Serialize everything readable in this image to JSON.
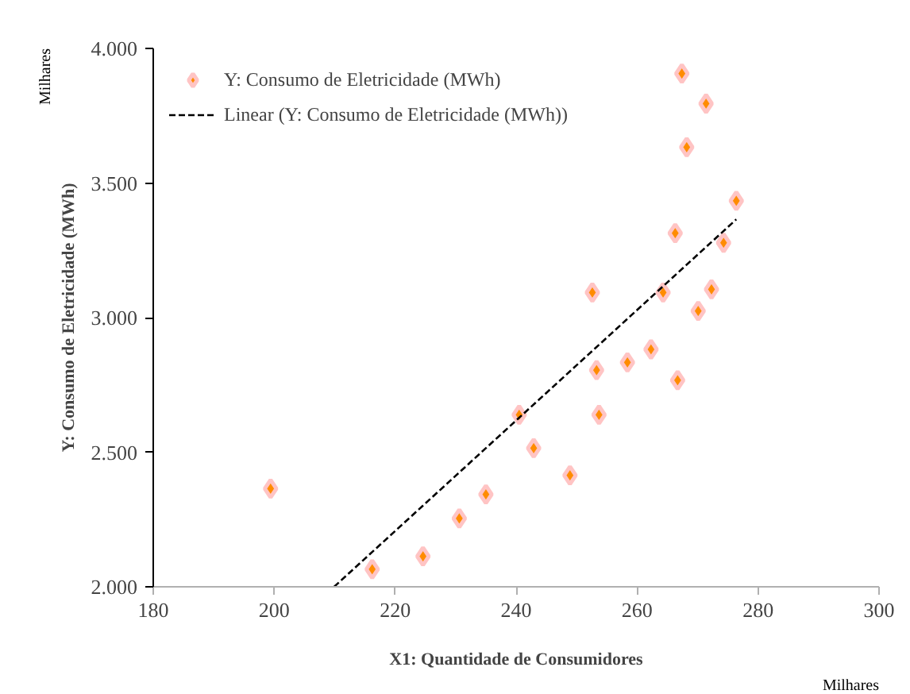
{
  "chart_data": {
    "type": "scatter",
    "xlabel": "X1: Quantidade de Consumidores",
    "ylabel": "Y: Consumo de Eletricidade (MWh)",
    "annotations": [
      "Milhares",
      "Milhares"
    ],
    "xlim": [
      180,
      300
    ],
    "xticks": [
      180,
      200,
      220,
      240,
      260,
      280,
      300
    ],
    "ylim": [
      2000,
      4000
    ],
    "yticks": [
      {
        "value": 2000,
        "label": "2.000"
      },
      {
        "value": 2500,
        "label": "2.500"
      },
      {
        "value": 3000,
        "label": "3.000"
      },
      {
        "value": 3500,
        "label": "3.500"
      },
      {
        "value": 4000,
        "label": "4.000"
      }
    ],
    "grid": false,
    "legend": "top left",
    "series": [
      {
        "name": "Y: Consumo de Eletricidade (MWh)",
        "marker": "diamond",
        "color": "#ff8c00",
        "x": [
          199.4,
          216.2,
          224.6,
          230.6,
          235.0,
          240.5,
          242.9,
          248.9,
          253.3,
          253.7,
          258.4,
          262.3,
          266.7,
          270.1,
          252.6,
          264.3,
          272.3,
          274.3,
          266.3,
          276.4,
          268.2,
          271.4,
          267.4
        ],
        "values": [
          2365,
          2065,
          2113,
          2254,
          2343,
          2639,
          2515,
          2414,
          2805,
          2639,
          2834,
          2882,
          2767,
          3025,
          3093,
          3093,
          3105,
          3278,
          3314,
          3434,
          3633,
          3795,
          3907
        ]
      },
      {
        "name": "Linear (Y: Consumo de Eletricidade (MWh))",
        "type": "line",
        "color": "#000000",
        "line_style": "dashed",
        "x": [
          209.9,
          276.4
        ],
        "values": [
          2000,
          3365
        ]
      }
    ]
  }
}
